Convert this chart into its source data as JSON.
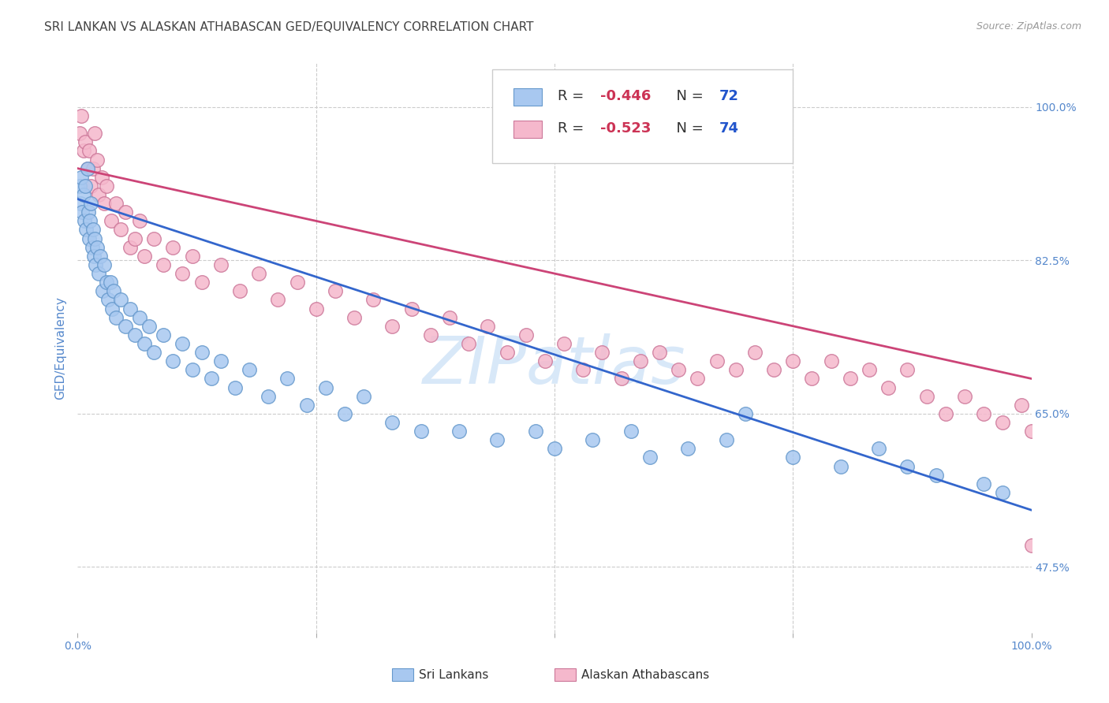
{
  "title": "SRI LANKAN VS ALASKAN ATHABASCAN GED/EQUIVALENCY CORRELATION CHART",
  "source": "Source: ZipAtlas.com",
  "ylabel": "GED/Equivalency",
  "right_yticks": [
    47.5,
    65.0,
    82.5,
    100.0
  ],
  "right_ytick_labels": [
    "47.5%",
    "65.0%",
    "82.5%",
    "100.0%"
  ],
  "sri_lankan_color": "#a8c8f0",
  "sri_lankan_edge": "#6699cc",
  "alaskan_color": "#f5b8cc",
  "alaskan_edge": "#cc7799",
  "blue_line_color": "#3366cc",
  "pink_line_color": "#cc4477",
  "watermark": "ZIPatlas",
  "watermark_color": "#d8e8f8",
  "background_color": "#ffffff",
  "grid_color": "#cccccc",
  "title_color": "#444444",
  "axis_label_color": "#5588cc",
  "sri_lankans_label": "Sri Lankans",
  "alaskan_label": "Alaskan Athabascans",
  "sri_lankan_points": [
    [
      0.002,
      0.91
    ],
    [
      0.003,
      0.89
    ],
    [
      0.004,
      0.92
    ],
    [
      0.005,
      0.88
    ],
    [
      0.006,
      0.9
    ],
    [
      0.007,
      0.87
    ],
    [
      0.008,
      0.91
    ],
    [
      0.009,
      0.86
    ],
    [
      0.01,
      0.93
    ],
    [
      0.011,
      0.88
    ],
    [
      0.012,
      0.85
    ],
    [
      0.013,
      0.87
    ],
    [
      0.014,
      0.89
    ],
    [
      0.015,
      0.84
    ],
    [
      0.016,
      0.86
    ],
    [
      0.017,
      0.83
    ],
    [
      0.018,
      0.85
    ],
    [
      0.019,
      0.82
    ],
    [
      0.02,
      0.84
    ],
    [
      0.022,
      0.81
    ],
    [
      0.024,
      0.83
    ],
    [
      0.026,
      0.79
    ],
    [
      0.028,
      0.82
    ],
    [
      0.03,
      0.8
    ],
    [
      0.032,
      0.78
    ],
    [
      0.034,
      0.8
    ],
    [
      0.036,
      0.77
    ],
    [
      0.038,
      0.79
    ],
    [
      0.04,
      0.76
    ],
    [
      0.045,
      0.78
    ],
    [
      0.05,
      0.75
    ],
    [
      0.055,
      0.77
    ],
    [
      0.06,
      0.74
    ],
    [
      0.065,
      0.76
    ],
    [
      0.07,
      0.73
    ],
    [
      0.075,
      0.75
    ],
    [
      0.08,
      0.72
    ],
    [
      0.09,
      0.74
    ],
    [
      0.1,
      0.71
    ],
    [
      0.11,
      0.73
    ],
    [
      0.12,
      0.7
    ],
    [
      0.13,
      0.72
    ],
    [
      0.14,
      0.69
    ],
    [
      0.15,
      0.71
    ],
    [
      0.165,
      0.68
    ],
    [
      0.18,
      0.7
    ],
    [
      0.2,
      0.67
    ],
    [
      0.22,
      0.69
    ],
    [
      0.24,
      0.66
    ],
    [
      0.26,
      0.68
    ],
    [
      0.28,
      0.65
    ],
    [
      0.3,
      0.67
    ],
    [
      0.33,
      0.64
    ],
    [
      0.36,
      0.63
    ],
    [
      0.4,
      0.63
    ],
    [
      0.44,
      0.62
    ],
    [
      0.48,
      0.63
    ],
    [
      0.5,
      0.61
    ],
    [
      0.54,
      0.62
    ],
    [
      0.58,
      0.63
    ],
    [
      0.6,
      0.6
    ],
    [
      0.64,
      0.61
    ],
    [
      0.68,
      0.62
    ],
    [
      0.7,
      0.65
    ],
    [
      0.75,
      0.6
    ],
    [
      0.8,
      0.59
    ],
    [
      0.84,
      0.61
    ],
    [
      0.87,
      0.59
    ],
    [
      0.9,
      0.58
    ],
    [
      0.95,
      0.57
    ],
    [
      0.97,
      0.56
    ]
  ],
  "alaskan_points": [
    [
      0.002,
      0.97
    ],
    [
      0.004,
      0.99
    ],
    [
      0.006,
      0.95
    ],
    [
      0.008,
      0.96
    ],
    [
      0.01,
      0.93
    ],
    [
      0.012,
      0.95
    ],
    [
      0.014,
      0.91
    ],
    [
      0.016,
      0.93
    ],
    [
      0.018,
      0.97
    ],
    [
      0.02,
      0.94
    ],
    [
      0.022,
      0.9
    ],
    [
      0.025,
      0.92
    ],
    [
      0.028,
      0.89
    ],
    [
      0.03,
      0.91
    ],
    [
      0.035,
      0.87
    ],
    [
      0.04,
      0.89
    ],
    [
      0.045,
      0.86
    ],
    [
      0.05,
      0.88
    ],
    [
      0.055,
      0.84
    ],
    [
      0.06,
      0.85
    ],
    [
      0.065,
      0.87
    ],
    [
      0.07,
      0.83
    ],
    [
      0.08,
      0.85
    ],
    [
      0.09,
      0.82
    ],
    [
      0.1,
      0.84
    ],
    [
      0.11,
      0.81
    ],
    [
      0.12,
      0.83
    ],
    [
      0.13,
      0.8
    ],
    [
      0.15,
      0.82
    ],
    [
      0.17,
      0.79
    ],
    [
      0.19,
      0.81
    ],
    [
      0.21,
      0.78
    ],
    [
      0.23,
      0.8
    ],
    [
      0.25,
      0.77
    ],
    [
      0.27,
      0.79
    ],
    [
      0.29,
      0.76
    ],
    [
      0.31,
      0.78
    ],
    [
      0.33,
      0.75
    ],
    [
      0.35,
      0.77
    ],
    [
      0.37,
      0.74
    ],
    [
      0.39,
      0.76
    ],
    [
      0.41,
      0.73
    ],
    [
      0.43,
      0.75
    ],
    [
      0.45,
      0.72
    ],
    [
      0.47,
      0.74
    ],
    [
      0.49,
      0.71
    ],
    [
      0.51,
      0.73
    ],
    [
      0.53,
      0.7
    ],
    [
      0.55,
      0.72
    ],
    [
      0.57,
      0.69
    ],
    [
      0.59,
      0.71
    ],
    [
      0.61,
      0.72
    ],
    [
      0.63,
      0.7
    ],
    [
      0.65,
      0.69
    ],
    [
      0.67,
      0.71
    ],
    [
      0.69,
      0.7
    ],
    [
      0.71,
      0.72
    ],
    [
      0.73,
      0.7
    ],
    [
      0.75,
      0.71
    ],
    [
      0.77,
      0.69
    ],
    [
      0.79,
      0.71
    ],
    [
      0.81,
      0.69
    ],
    [
      0.83,
      0.7
    ],
    [
      0.85,
      0.68
    ],
    [
      0.87,
      0.7
    ],
    [
      0.89,
      0.67
    ],
    [
      0.91,
      0.65
    ],
    [
      0.93,
      0.67
    ],
    [
      0.95,
      0.65
    ],
    [
      0.97,
      0.64
    ],
    [
      0.99,
      0.66
    ],
    [
      1.0,
      0.63
    ],
    [
      1.0,
      0.5
    ]
  ],
  "xlim": [
    0.0,
    1.0
  ],
  "ylim": [
    0.4,
    1.05
  ],
  "blue_line_y_start": 0.895,
  "blue_line_y_end": 0.54,
  "pink_line_y_start": 0.93,
  "pink_line_y_end": 0.69
}
